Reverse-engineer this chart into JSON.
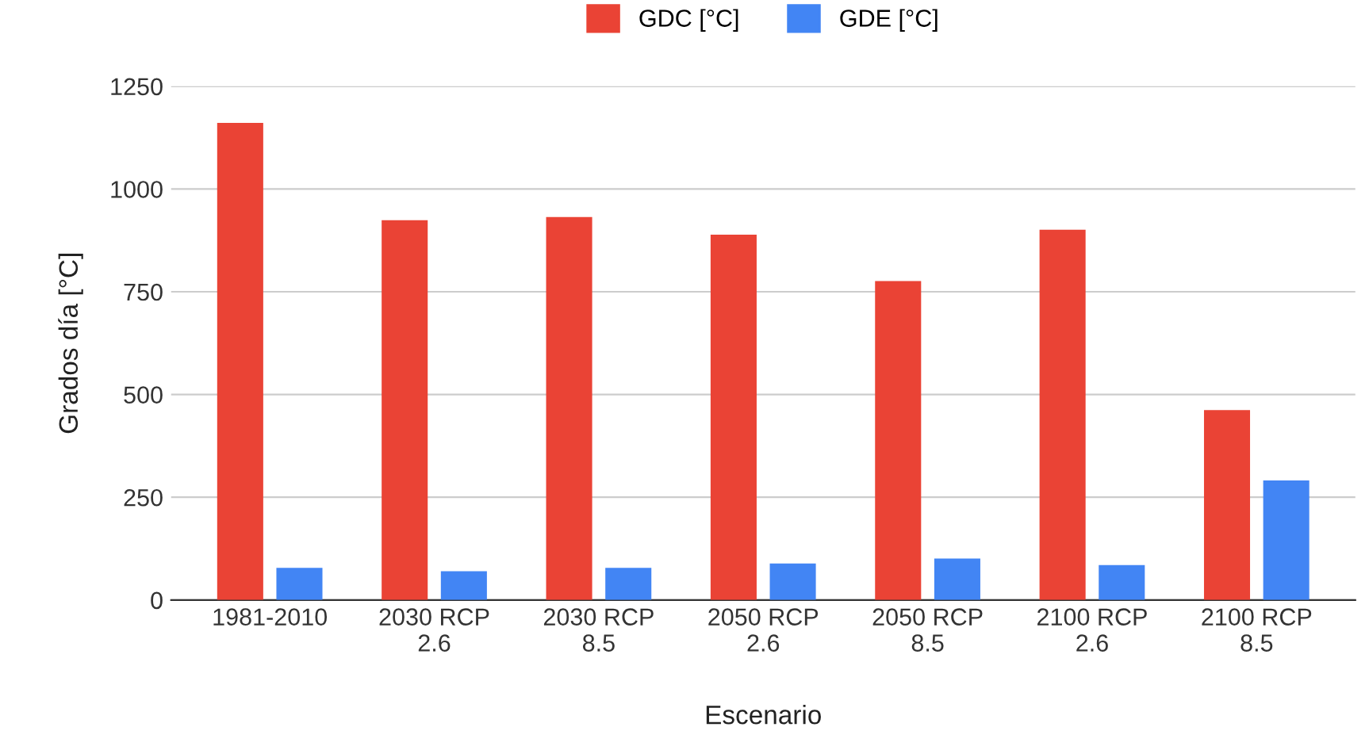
{
  "chart_data": {
    "type": "bar",
    "xlabel": "Escenario",
    "ylabel": "Grados día [°C]",
    "categories": [
      "1981-2010",
      "2030 RCP\n2.6",
      "2030 RCP\n8.5",
      "2050 RCP\n2.6",
      "2050 RCP\n8.5",
      "2100 RCP\n2.6",
      "2100 RCP\n8.5"
    ],
    "series": [
      {
        "name": "GDC [°C]",
        "color": "#ea4335",
        "values": [
          1161,
          924,
          932,
          889,
          776,
          901,
          462
        ]
      },
      {
        "name": "GDE [°C]",
        "color": "#4285f4",
        "values": [
          78,
          70,
          78,
          89,
          101,
          85,
          291
        ]
      }
    ],
    "ylim": [
      0,
      1250
    ],
    "yticks": [
      0,
      250,
      500,
      750,
      1000,
      1250
    ],
    "grid": "y",
    "legend": "top"
  }
}
